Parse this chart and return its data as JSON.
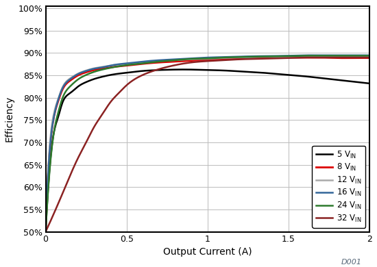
{
  "title": "",
  "xlabel": "Output Current (A)",
  "ylabel": "Efficiency",
  "xlim": [
    0,
    2
  ],
  "ylim": [
    0.5,
    1.005
  ],
  "yticks": [
    0.5,
    0.55,
    0.6,
    0.65,
    0.7,
    0.75,
    0.8,
    0.85,
    0.9,
    0.95,
    1.0
  ],
  "xticks": [
    0,
    0.5,
    1.0,
    1.5,
    2.0
  ],
  "watermark": "D001",
  "series": [
    {
      "label": "5 V_IN",
      "color": "#000000",
      "linewidth": 1.8,
      "x": [
        0.0,
        0.02,
        0.05,
        0.08,
        0.1,
        0.15,
        0.2,
        0.25,
        0.3,
        0.35,
        0.4,
        0.5,
        0.6,
        0.7,
        0.8,
        0.9,
        1.0,
        1.1,
        1.2,
        1.3,
        1.5,
        1.6,
        1.7,
        1.8,
        1.9,
        2.0
      ],
      "y": [
        0.5,
        0.62,
        0.72,
        0.76,
        0.785,
        0.81,
        0.825,
        0.835,
        0.842,
        0.847,
        0.851,
        0.856,
        0.86,
        0.862,
        0.863,
        0.863,
        0.862,
        0.861,
        0.859,
        0.857,
        0.851,
        0.848,
        0.844,
        0.84,
        0.836,
        0.832
      ]
    },
    {
      "label": "8 V_IN",
      "color": "#dd0000",
      "linewidth": 2.0,
      "x": [
        0.0,
        0.02,
        0.05,
        0.08,
        0.1,
        0.15,
        0.2,
        0.25,
        0.3,
        0.35,
        0.4,
        0.5,
        0.6,
        0.7,
        0.8,
        0.9,
        1.0,
        1.1,
        1.2,
        1.3,
        1.5,
        1.6,
        1.7,
        1.8,
        1.9,
        2.0
      ],
      "y": [
        0.5,
        0.655,
        0.755,
        0.795,
        0.815,
        0.838,
        0.85,
        0.857,
        0.862,
        0.865,
        0.868,
        0.872,
        0.876,
        0.879,
        0.881,
        0.883,
        0.885,
        0.887,
        0.888,
        0.889,
        0.89,
        0.89,
        0.89,
        0.889,
        0.889,
        0.889
      ]
    },
    {
      "label": "12 V_IN",
      "color": "#aaaaaa",
      "linewidth": 1.8,
      "x": [
        0.0,
        0.02,
        0.05,
        0.08,
        0.1,
        0.15,
        0.2,
        0.25,
        0.3,
        0.35,
        0.4,
        0.5,
        0.6,
        0.7,
        0.8,
        0.9,
        1.0,
        1.1,
        1.2,
        1.3,
        1.5,
        1.6,
        1.7,
        1.8,
        1.9,
        2.0
      ],
      "y": [
        0.5,
        0.665,
        0.763,
        0.8,
        0.82,
        0.843,
        0.854,
        0.861,
        0.866,
        0.869,
        0.872,
        0.876,
        0.879,
        0.882,
        0.884,
        0.886,
        0.887,
        0.889,
        0.89,
        0.891,
        0.892,
        0.892,
        0.892,
        0.892,
        0.892,
        0.892
      ]
    },
    {
      "label": "16 V_IN",
      "color": "#336699",
      "linewidth": 1.8,
      "x": [
        0.0,
        0.02,
        0.05,
        0.08,
        0.1,
        0.15,
        0.2,
        0.25,
        0.3,
        0.35,
        0.4,
        0.5,
        0.6,
        0.7,
        0.8,
        0.9,
        1.0,
        1.1,
        1.2,
        1.3,
        1.5,
        1.6,
        1.7,
        1.8,
        1.9,
        2.0
      ],
      "y": [
        0.5,
        0.655,
        0.755,
        0.798,
        0.818,
        0.841,
        0.853,
        0.86,
        0.865,
        0.868,
        0.872,
        0.877,
        0.881,
        0.884,
        0.886,
        0.888,
        0.89,
        0.891,
        0.892,
        0.893,
        0.894,
        0.895,
        0.895,
        0.895,
        0.895,
        0.895
      ]
    },
    {
      "label": "24 V_IN",
      "color": "#2d7a2d",
      "linewidth": 1.8,
      "x": [
        0.0,
        0.02,
        0.05,
        0.08,
        0.1,
        0.15,
        0.2,
        0.25,
        0.3,
        0.35,
        0.4,
        0.5,
        0.6,
        0.7,
        0.8,
        0.9,
        1.0,
        1.1,
        1.2,
        1.3,
        1.5,
        1.6,
        1.7,
        1.8,
        1.9,
        2.0
      ],
      "y": [
        0.5,
        0.615,
        0.72,
        0.77,
        0.795,
        0.825,
        0.841,
        0.851,
        0.858,
        0.863,
        0.867,
        0.873,
        0.877,
        0.881,
        0.884,
        0.887,
        0.888,
        0.89,
        0.891,
        0.892,
        0.893,
        0.894,
        0.894,
        0.894,
        0.894,
        0.894
      ]
    },
    {
      "label": "32 V_IN",
      "color": "#8b2222",
      "linewidth": 1.8,
      "x": [
        0.0,
        0.05,
        0.1,
        0.15,
        0.2,
        0.25,
        0.3,
        0.35,
        0.4,
        0.45,
        0.5,
        0.6,
        0.7,
        0.8,
        0.9,
        1.0,
        1.1,
        1.2,
        1.3,
        1.5,
        1.6,
        1.7,
        1.8,
        1.9,
        2.0
      ],
      "y": [
        0.5,
        0.54,
        0.582,
        0.625,
        0.665,
        0.7,
        0.735,
        0.763,
        0.79,
        0.81,
        0.828,
        0.851,
        0.864,
        0.873,
        0.879,
        0.882,
        0.884,
        0.886,
        0.887,
        0.889,
        0.89,
        0.89,
        0.89,
        0.89,
        0.89
      ]
    }
  ]
}
